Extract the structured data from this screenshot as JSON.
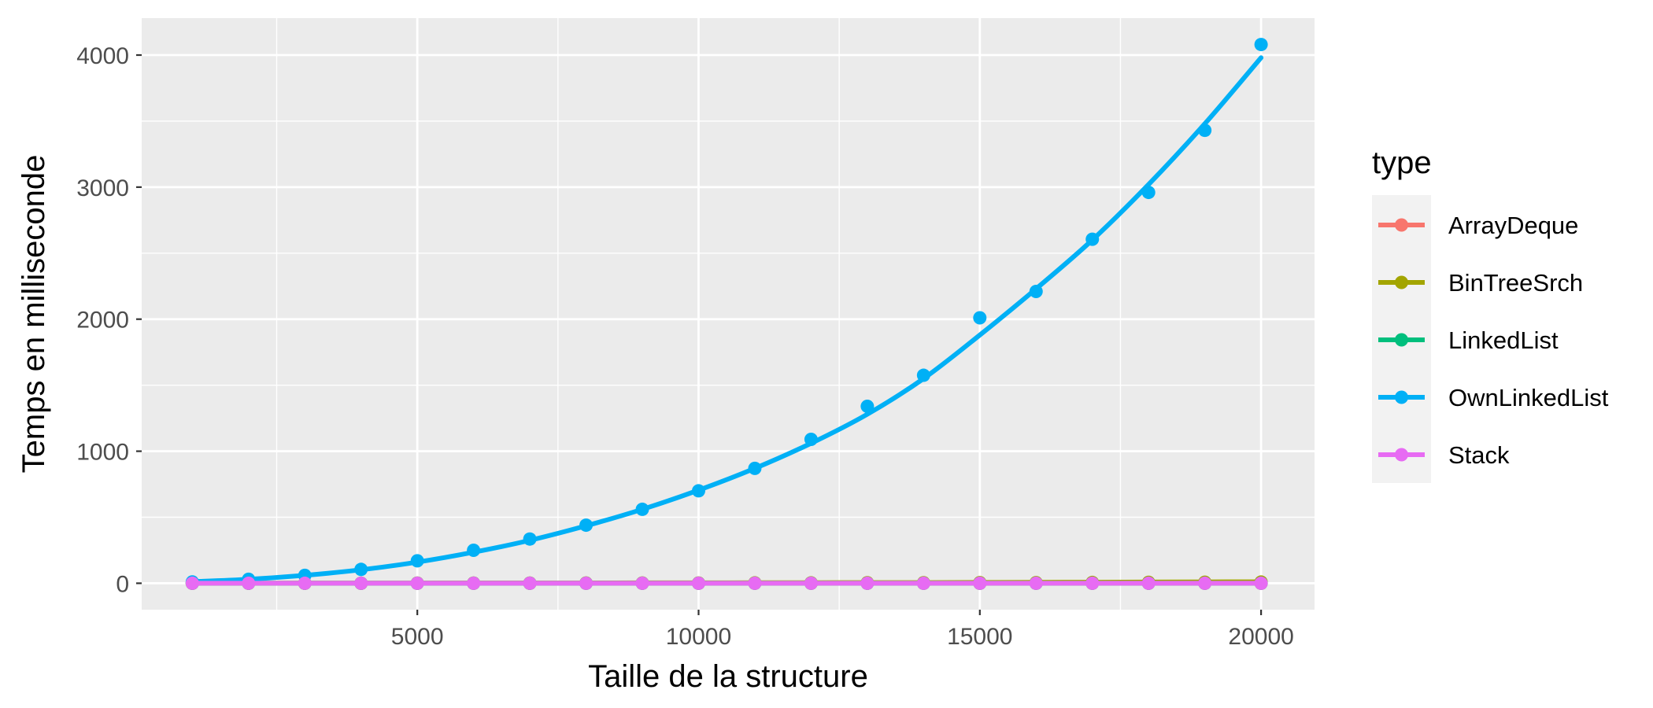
{
  "chart_data": {
    "type": "line",
    "title": "",
    "xlabel": "Taille de la structure",
    "ylabel": "Temps en milliseconde",
    "xlim": [
      100,
      20950
    ],
    "ylim": [
      -200,
      4280
    ],
    "x_ticks": [
      5000,
      10000,
      15000,
      20000
    ],
    "x_tick_labels": [
      "5000",
      "10000",
      "15000",
      "20000"
    ],
    "y_ticks": [
      0,
      1000,
      2000,
      3000,
      4000
    ],
    "y_tick_labels": [
      "0",
      "1000",
      "2000",
      "3000",
      "4000"
    ],
    "grid": true,
    "legend": {
      "title": "type",
      "position": "right"
    },
    "x": [
      1000,
      2000,
      3000,
      4000,
      5000,
      6000,
      7000,
      8000,
      9000,
      10000,
      11000,
      12000,
      13000,
      14000,
      15000,
      16000,
      17000,
      18000,
      19000,
      20000
    ],
    "series": [
      {
        "name": "ArrayDeque",
        "color": "#F8766D",
        "values": [
          0,
          0,
          0,
          0,
          0,
          0,
          0,
          0,
          0,
          0,
          0,
          0,
          0,
          0,
          0,
          0,
          0,
          0,
          0,
          0
        ],
        "fit": [
          0,
          0,
          0,
          0,
          0,
          0,
          0,
          0,
          0,
          0,
          0,
          0,
          0,
          0,
          0,
          0,
          0,
          0,
          0,
          0
        ]
      },
      {
        "name": "BinTreeSrch",
        "color": "#A3A500",
        "values": [
          0,
          0,
          0,
          0,
          1,
          1,
          1,
          2,
          2,
          2,
          3,
          3,
          4,
          4,
          5,
          5,
          6,
          7,
          8,
          9
        ],
        "fit": [
          0,
          0,
          1,
          1,
          1,
          2,
          2,
          2,
          3,
          3,
          4,
          4,
          5,
          5,
          6,
          7,
          8,
          9,
          10,
          11
        ]
      },
      {
        "name": "LinkedList",
        "color": "#00BF7D",
        "values": [
          0,
          0,
          0,
          0,
          0,
          0,
          0,
          0,
          0,
          0,
          0,
          0,
          0,
          0,
          0,
          0,
          0,
          0,
          0,
          0
        ],
        "fit": [
          0,
          0,
          0,
          0,
          0,
          0,
          0,
          0,
          0,
          0,
          0,
          0,
          0,
          0,
          0,
          0,
          0,
          0,
          0,
          0
        ]
      },
      {
        "name": "OwnLinkedList",
        "color": "#00B0F6",
        "values": [
          10,
          30,
          60,
          105,
          170,
          250,
          335,
          440,
          560,
          700,
          870,
          1090,
          1340,
          1575,
          2010,
          2210,
          2605,
          2960,
          3430,
          4080
        ],
        "fit": [
          12,
          30,
          60,
          102,
          160,
          235,
          325,
          435,
          560,
          705,
          870,
          1060,
          1280,
          1550,
          1880,
          2230,
          2600,
          3020,
          3480,
          3980
        ]
      },
      {
        "name": "Stack",
        "color": "#E76BF3",
        "values": [
          0,
          0,
          0,
          0,
          0,
          0,
          0,
          0,
          0,
          0,
          0,
          0,
          0,
          0,
          0,
          0,
          0,
          0,
          0,
          0
        ],
        "fit": [
          0,
          0,
          0,
          0,
          0,
          0,
          0,
          0,
          0,
          0,
          0,
          0,
          0,
          0,
          0,
          0,
          0,
          0,
          0,
          0
        ]
      }
    ]
  }
}
